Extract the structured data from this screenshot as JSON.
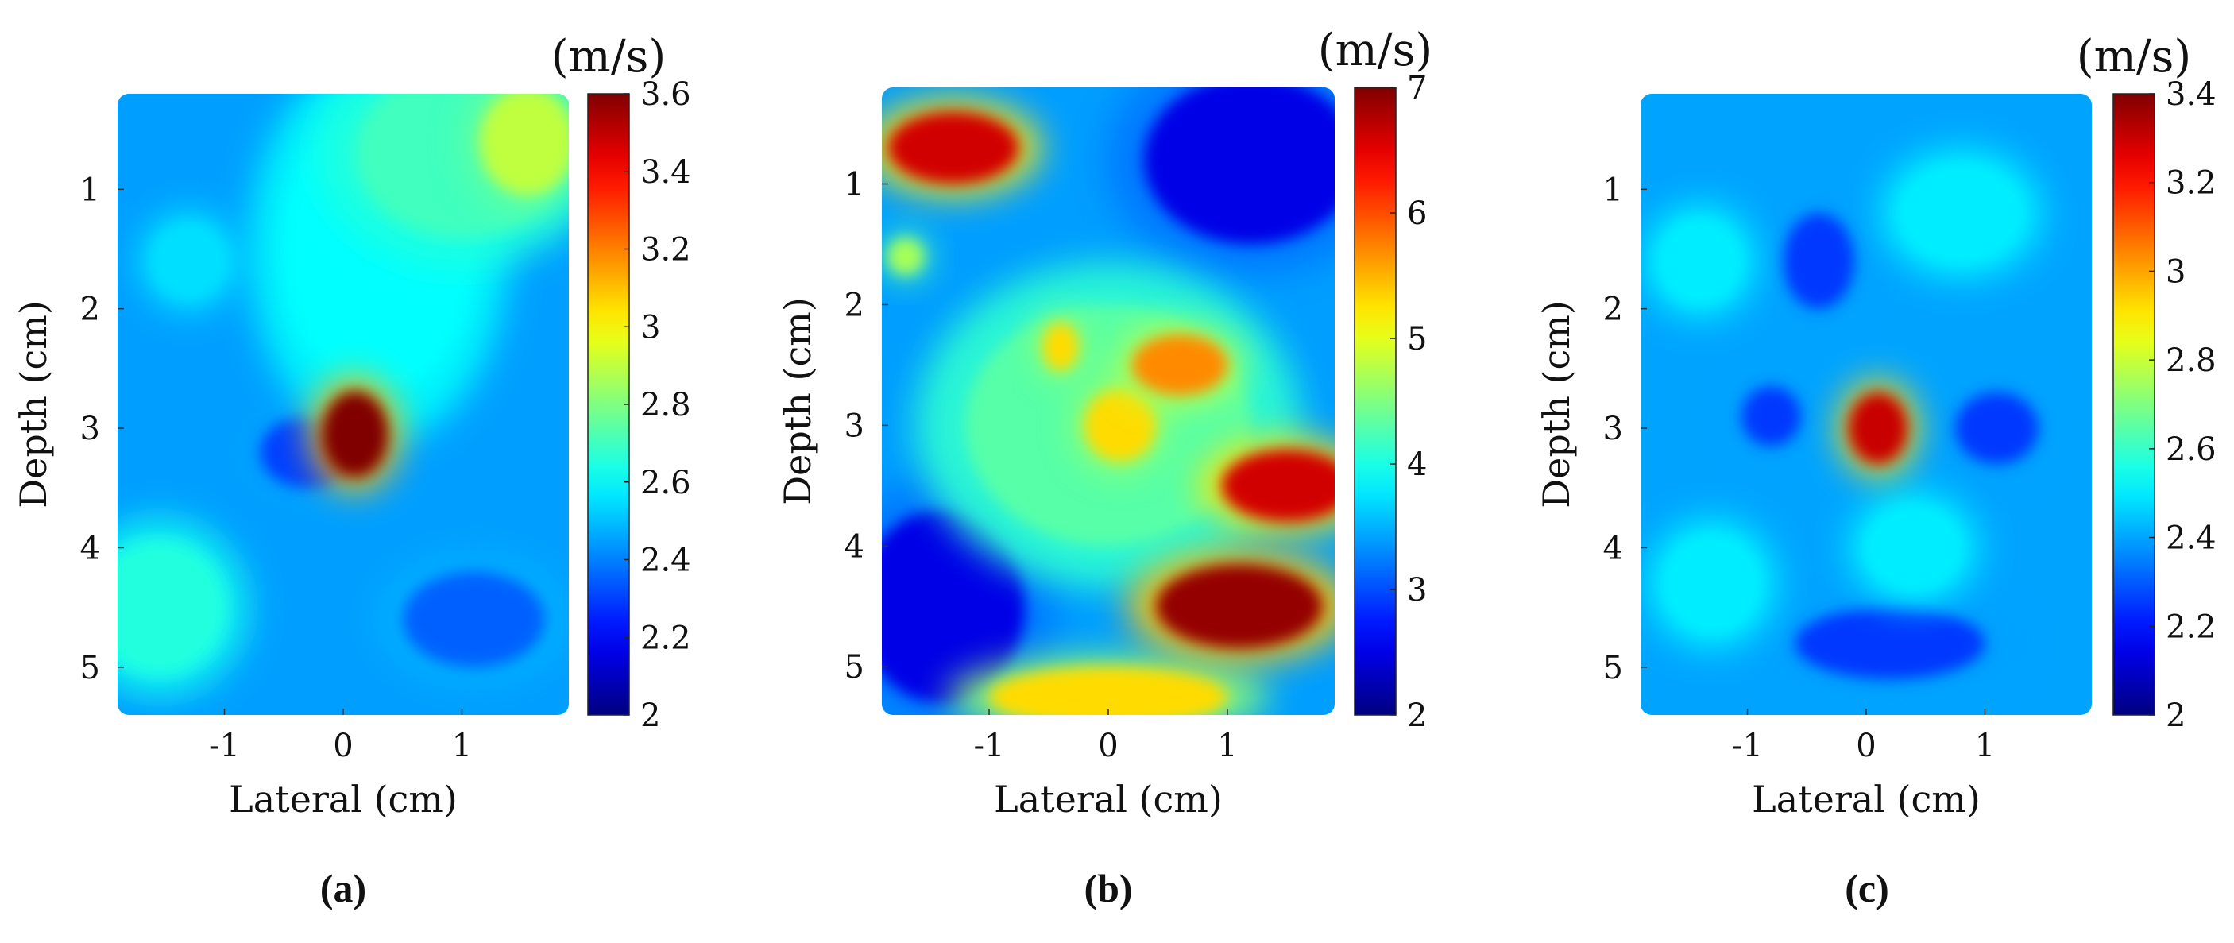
{
  "chart_data": [
    {
      "type": "heatmap",
      "caption": "(a)",
      "xlabel": "Lateral (cm)",
      "ylabel": "Depth (cm)",
      "xticks": [
        -1,
        0,
        1
      ],
      "yticks": [
        1,
        2,
        3,
        4,
        5
      ],
      "xlim": [
        -1.9,
        1.9
      ],
      "ylim": [
        0.2,
        5.4
      ],
      "colorbar": {
        "unit": "(m/s)",
        "range": [
          2,
          3.6
        ],
        "ticks": [
          "2",
          "2.2",
          "2.4",
          "2.6",
          "2.8",
          "3",
          "3.2",
          "3.4",
          "3.6"
        ]
      },
      "background": 2.45,
      "blobs": [
        {
          "x": 0.1,
          "y": 3.05,
          "rx": 0.28,
          "ry": 0.36,
          "v": 3.6
        },
        {
          "x": 1.55,
          "y": 0.6,
          "rx": 0.4,
          "ry": 0.45,
          "v": 2.9
        },
        {
          "x": 1.0,
          "y": 0.7,
          "rx": 0.9,
          "ry": 0.7,
          "v": 2.7
        },
        {
          "x": 0.3,
          "y": 1.5,
          "rx": 0.8,
          "ry": 1.2,
          "v": 2.6
        },
        {
          "x": -1.55,
          "y": 4.5,
          "rx": 0.55,
          "ry": 0.55,
          "v": 2.65
        },
        {
          "x": -1.3,
          "y": 1.6,
          "rx": 0.3,
          "ry": 0.3,
          "v": 2.55
        },
        {
          "x": -0.3,
          "y": 3.2,
          "rx": 0.4,
          "ry": 0.3,
          "v": 2.3
        },
        {
          "x": 1.1,
          "y": 4.6,
          "rx": 0.6,
          "ry": 0.4,
          "v": 2.35
        }
      ]
    },
    {
      "type": "heatmap",
      "caption": "(b)",
      "xlabel": "Lateral (cm)",
      "ylabel": "Depth (cm)",
      "xticks": [
        -1,
        0,
        1
      ],
      "yticks": [
        1,
        2,
        3,
        4,
        5
      ],
      "xlim": [
        -1.9,
        1.9
      ],
      "ylim": [
        0.2,
        5.4
      ],
      "colorbar": {
        "unit": "(m/s)",
        "range": [
          2,
          7
        ],
        "ticks": [
          "2",
          "3",
          "4",
          "5",
          "6",
          "7"
        ]
      },
      "background": 3.4,
      "blobs": [
        {
          "x": -1.3,
          "y": 0.7,
          "rx": 0.55,
          "ry": 0.3,
          "v": 6.6
        },
        {
          "x": 0.6,
          "y": 2.5,
          "rx": 0.4,
          "ry": 0.25,
          "v": 5.7
        },
        {
          "x": -0.4,
          "y": 2.35,
          "rx": 0.15,
          "ry": 0.2,
          "v": 5.3
        },
        {
          "x": 0.1,
          "y": 3.0,
          "rx": 0.3,
          "ry": 0.3,
          "v": 5.3
        },
        {
          "x": 1.5,
          "y": 3.5,
          "rx": 0.55,
          "ry": 0.3,
          "v": 6.6
        },
        {
          "x": 1.1,
          "y": 4.5,
          "rx": 0.7,
          "ry": 0.35,
          "v": 6.9
        },
        {
          "x": 0.0,
          "y": 5.25,
          "rx": 1.0,
          "ry": 0.25,
          "v": 5.3
        },
        {
          "x": -1.7,
          "y": 1.6,
          "rx": 0.15,
          "ry": 0.15,
          "v": 4.7
        },
        {
          "x": 1.2,
          "y": 0.8,
          "rx": 0.9,
          "ry": 0.7,
          "v": 2.5
        },
        {
          "x": -1.4,
          "y": 4.5,
          "rx": 0.7,
          "ry": 0.8,
          "v": 2.5
        },
        {
          "x": 0.0,
          "y": 3.0,
          "rx": 1.2,
          "ry": 1.0,
          "v": 4.3
        }
      ]
    },
    {
      "type": "heatmap",
      "caption": "(c)",
      "xlabel": "Lateral (cm)",
      "ylabel": "Depth (cm)",
      "xticks": [
        -1,
        0,
        1
      ],
      "yticks": [
        1,
        2,
        3,
        4,
        5
      ],
      "xlim": [
        -1.9,
        1.9
      ],
      "ylim": [
        0.2,
        5.4
      ],
      "colorbar": {
        "unit": "(m/s)",
        "range": [
          2,
          3.4
        ],
        "ticks": [
          "2",
          "2.2",
          "2.4",
          "2.6",
          "2.8",
          "3",
          "3.2",
          "3.4"
        ]
      },
      "background": 2.4,
      "blobs": [
        {
          "x": 0.1,
          "y": 3.0,
          "rx": 0.25,
          "ry": 0.3,
          "v": 3.3
        },
        {
          "x": -1.4,
          "y": 1.6,
          "rx": 0.35,
          "ry": 0.35,
          "v": 2.5
        },
        {
          "x": 0.8,
          "y": 1.2,
          "rx": 0.5,
          "ry": 0.4,
          "v": 2.5
        },
        {
          "x": 0.4,
          "y": 4.0,
          "rx": 0.4,
          "ry": 0.35,
          "v": 2.5
        },
        {
          "x": -1.3,
          "y": 4.3,
          "rx": 0.4,
          "ry": 0.4,
          "v": 2.5
        },
        {
          "x": -0.4,
          "y": 1.6,
          "rx": 0.3,
          "ry": 0.4,
          "v": 2.25
        },
        {
          "x": -0.8,
          "y": 2.9,
          "rx": 0.25,
          "ry": 0.25,
          "v": 2.25
        },
        {
          "x": 1.1,
          "y": 3.0,
          "rx": 0.35,
          "ry": 0.3,
          "v": 2.25
        },
        {
          "x": 0.2,
          "y": 4.8,
          "rx": 0.8,
          "ry": 0.3,
          "v": 2.25
        }
      ]
    }
  ]
}
